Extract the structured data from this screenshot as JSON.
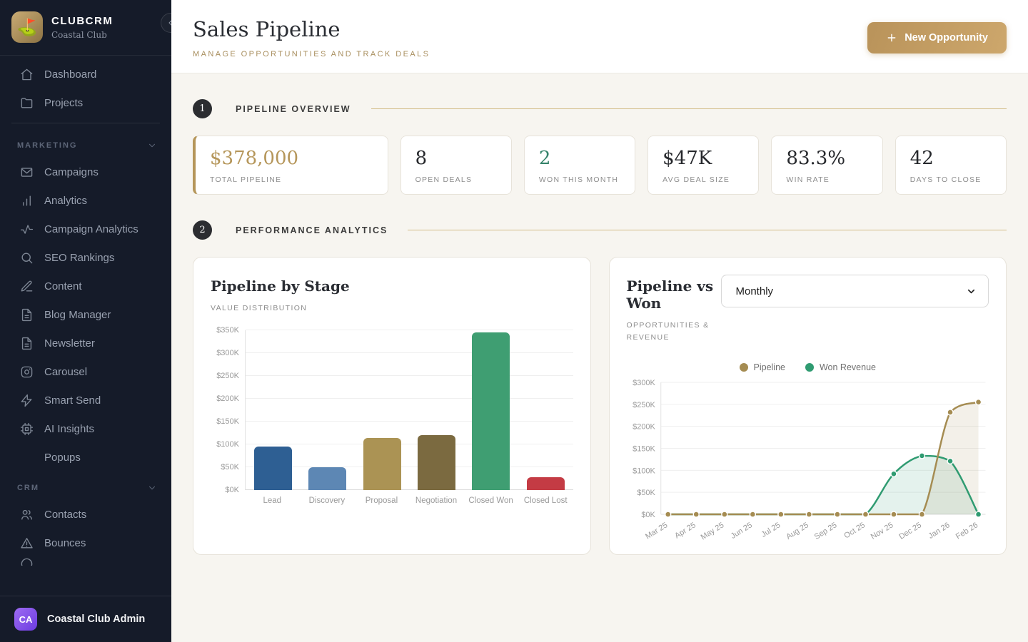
{
  "colors": {
    "accent_gold": "#b5965a",
    "accent_green": "#35836a",
    "sidebar_bg": "#151b29",
    "section_line_gold": "#c5a863",
    "main_bg": "#f7f5f0"
  },
  "sidebar": {
    "brand": {
      "name": "CLUBCRM",
      "subtitle": "Coastal Club",
      "logo_icon": "golf-flag-icon",
      "logo_glyph": "⛳"
    },
    "top_items": [
      {
        "label": "Dashboard",
        "icon": "home"
      },
      {
        "label": "Projects",
        "icon": "folder"
      }
    ],
    "sections": [
      {
        "label": "MARKETING",
        "items": [
          {
            "label": "Campaigns",
            "icon": "mail"
          },
          {
            "label": "Analytics",
            "icon": "bar-chart"
          },
          {
            "label": "Campaign Analytics",
            "icon": "activity"
          },
          {
            "label": "SEO Rankings",
            "icon": "search"
          },
          {
            "label": "Content",
            "icon": "pencil"
          },
          {
            "label": "Blog Manager",
            "icon": "file-text"
          },
          {
            "label": "Newsletter",
            "icon": "file-text"
          },
          {
            "label": "Carousel",
            "icon": "instagram"
          },
          {
            "label": "Smart Send",
            "icon": "zap"
          },
          {
            "label": "AI Insights",
            "icon": "cpu"
          },
          {
            "label": "Popups",
            "icon": "none"
          }
        ]
      },
      {
        "label": "CRM",
        "items": [
          {
            "label": "Contacts",
            "icon": "users"
          },
          {
            "label": "Bounces",
            "icon": "alert-triangle"
          }
        ]
      }
    ],
    "footer": {
      "avatar_initials": "CA",
      "name": "Coastal Club Admin"
    }
  },
  "header": {
    "title": "Sales Pipeline",
    "subtitle": "MANAGE OPPORTUNITIES AND TRACK DEALS",
    "new_opportunity_label": "New Opportunity"
  },
  "section_headers": [
    {
      "number": "1",
      "title": "PIPELINE OVERVIEW"
    },
    {
      "number": "2",
      "title": "PERFORMANCE ANALYTICS"
    }
  ],
  "stats": [
    {
      "value": "$378,000",
      "label": "TOTAL PIPELINE",
      "style": "gold"
    },
    {
      "value": "8",
      "label": "OPEN DEALS",
      "style": "dark"
    },
    {
      "value": "2",
      "label": "WON THIS MONTH",
      "style": "green"
    },
    {
      "value": "$47K",
      "label": "AVG DEAL SIZE",
      "style": "dark"
    },
    {
      "value": "83.3%",
      "label": "WIN RATE",
      "style": "dark"
    },
    {
      "value": "42",
      "label": "DAYS TO CLOSE",
      "style": "dark"
    }
  ],
  "panels": {
    "bar": {
      "title": "Pipeline by Stage",
      "subtitle": "VALUE DISTRIBUTION"
    },
    "line": {
      "title": "Pipeline vs Won",
      "subtitle": "OPPORTUNITIES & REVENUE",
      "select_value": "Monthly",
      "legend": [
        {
          "label": "Pipeline",
          "color": "#a58c52"
        },
        {
          "label": "Won Revenue",
          "color": "#2f9b71"
        }
      ]
    }
  },
  "chart_data": [
    {
      "type": "bar",
      "title": "Pipeline by Stage",
      "subtitle": "VALUE DISTRIBUTION",
      "categories": [
        "Lead",
        "Discovery",
        "Proposal",
        "Negotiation",
        "Closed Won",
        "Closed Lost"
      ],
      "values": [
        95000,
        50000,
        113000,
        120000,
        345000,
        28000
      ],
      "colors": [
        "#2e5f93",
        "#5d87b4",
        "#ab9354",
        "#7b6a40",
        "#3f9e72",
        "#c43b44"
      ],
      "ylabel_format": "$%K",
      "ylim": [
        0,
        350000
      ],
      "ytick_step": 50000,
      "grid": true
    },
    {
      "type": "line",
      "title": "Pipeline vs Won",
      "x": [
        "Mar 25",
        "Apr 25",
        "May 25",
        "Jun 25",
        "Jul 25",
        "Aug 25",
        "Sep 25",
        "Oct 25",
        "Nov 25",
        "Dec 25",
        "Jan 26",
        "Feb 26"
      ],
      "series": [
        {
          "name": "Pipeline",
          "color": "#a58c52",
          "values": [
            0,
            0,
            0,
            0,
            0,
            0,
            0,
            0,
            0,
            0,
            232000,
            255000
          ]
        },
        {
          "name": "Won Revenue",
          "color": "#2f9b71",
          "values": [
            0,
            0,
            0,
            0,
            0,
            0,
            0,
            0,
            92000,
            133000,
            121000,
            0
          ]
        }
      ],
      "ylim": [
        0,
        300000
      ],
      "ytick_step": 50000,
      "legend_position": "top",
      "grid": true,
      "smooth": true,
      "area_fill": true
    }
  ]
}
